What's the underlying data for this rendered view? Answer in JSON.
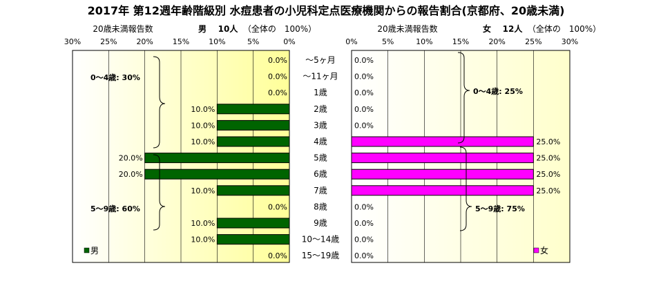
{
  "title": "2017年 第12週年齢階級別 水痘患者の小児科定点医療機関からの報告割合(京都府、20歳未満)",
  "colors": {
    "male": "#006400",
    "female": "#ff00ff",
    "panel_left": "#ffff99",
    "panel_right": "#ffffcc"
  },
  "left_header": {
    "axis_label": "20歳未満報告数",
    "sex": "男",
    "total": "10人",
    "share": "（全体の　100%）"
  },
  "right_header": {
    "axis_label": "20歳未満報告数",
    "sex": "女",
    "total": "12人",
    "share": "（全体の　100%）"
  },
  "left_braces": [
    {
      "label": "0～4歳: 30%"
    },
    {
      "label": "5～9歳: 60%"
    }
  ],
  "right_braces": [
    {
      "label": "0～4歳: 25%"
    },
    {
      "label": "5～9歳: 75%"
    }
  ],
  "chart_data": {
    "type": "bar",
    "title": "2017年 第12週年齢階級別 水痘患者の小児科定点医療機関からの報告割合(京都府、20歳未満)",
    "categories": [
      "～5ヶ月",
      "～11ヶ月",
      "1歳",
      "2歳",
      "3歳",
      "4歳",
      "5歳",
      "6歳",
      "7歳",
      "8歳",
      "9歳",
      "10～14歳",
      "15～19歳"
    ],
    "xlim": [
      0,
      30
    ],
    "x_ticks": [
      0,
      5,
      10,
      15,
      20,
      25,
      30
    ],
    "tick_labels": [
      "0%",
      "5%",
      "10%",
      "15%",
      "20%",
      "25%",
      "30%"
    ],
    "grid": true,
    "series": [
      {
        "name": "男",
        "color": "#006400",
        "values": [
          0,
          0,
          0,
          10,
          10,
          10,
          20,
          20,
          10,
          0,
          10,
          10,
          0
        ],
        "labels": [
          "0.0%",
          "0.0%",
          "0.0%",
          "10.0%",
          "10.0%",
          "10.0%",
          "20.0%",
          "20.0%",
          "10.0%",
          "0.0%",
          "10.0%",
          "10.0%",
          "0.0%"
        ]
      },
      {
        "name": "女",
        "color": "#ff00ff",
        "values": [
          0,
          0,
          0,
          0,
          0,
          25,
          25,
          25,
          25,
          0,
          0,
          0,
          0
        ],
        "labels": [
          "0.0%",
          "0.0%",
          "0.0%",
          "0.0%",
          "0.0%",
          "25.0%",
          "25.0%",
          "25.0%",
          "25.0%",
          "0.0%",
          "0.0%",
          "0.0%",
          "0.0%"
        ]
      }
    ]
  }
}
